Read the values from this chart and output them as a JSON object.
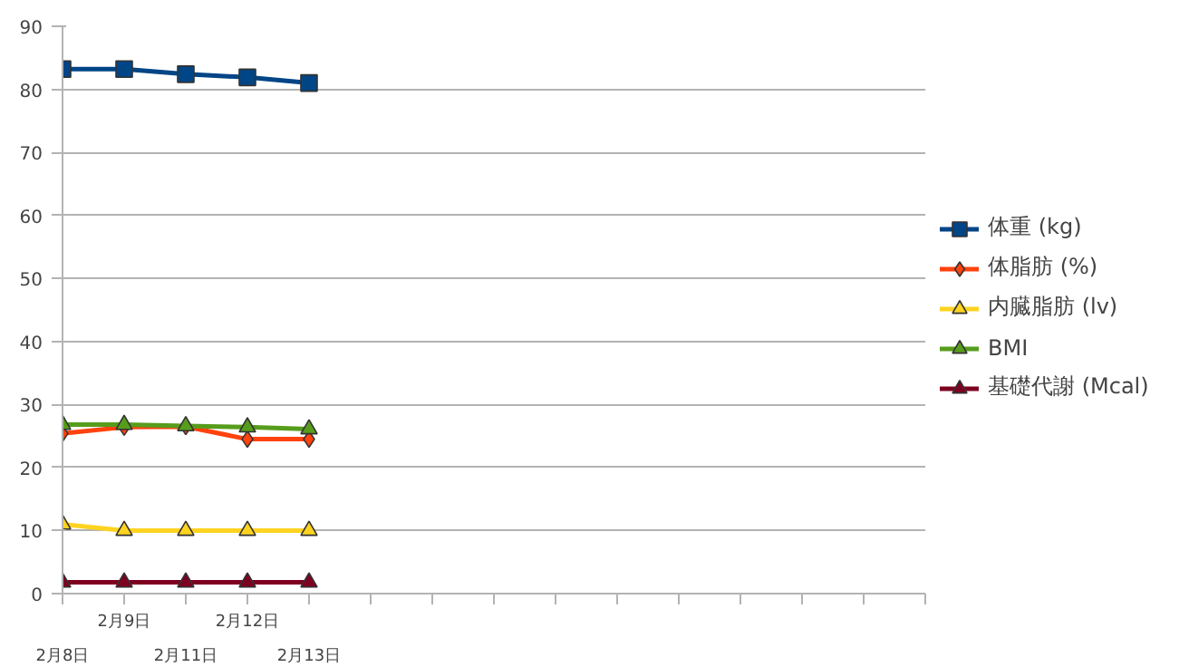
{
  "chart_data": {
    "type": "line",
    "categories": [
      "2月8日",
      "2月9日",
      "2月11日",
      "2月12日",
      "2月13日",
      null,
      null,
      null,
      null,
      null,
      null,
      null,
      null,
      null,
      null
    ],
    "series": [
      {
        "name": "体重 (kg)",
        "color": "#004586",
        "marker": "square",
        "values": [
          83.2,
          83.2,
          82.4,
          81.9,
          81.0,
          null,
          null,
          null,
          null,
          null,
          null,
          null,
          null,
          null,
          null
        ]
      },
      {
        "name": "体脂肪 (%)",
        "color": "#ff420e",
        "marker": "diamond",
        "values": [
          25.4,
          26.4,
          26.5,
          24.5,
          24.5,
          null,
          null,
          null,
          null,
          null,
          null,
          null,
          null,
          null,
          null
        ]
      },
      {
        "name": "内臓脂肪 (lv)",
        "color": "#ffd320",
        "marker": "triangle",
        "values": [
          11,
          10,
          10,
          10,
          10,
          null,
          null,
          null,
          null,
          null,
          null,
          null,
          null,
          null,
          null
        ]
      },
      {
        "name": "BMI",
        "color": "#579d1c",
        "marker": "triangle",
        "values": [
          26.8,
          26.8,
          26.6,
          26.4,
          26.1,
          null,
          null,
          null,
          null,
          null,
          null,
          null,
          null,
          null,
          null
        ]
      },
      {
        "name": "基礎代謝 (Mcal)",
        "color": "#7e0021",
        "marker": "triangle",
        "values": [
          1.8,
          1.8,
          1.8,
          1.8,
          1.8,
          null,
          null,
          null,
          null,
          null,
          null,
          null,
          null,
          null,
          null
        ]
      }
    ],
    "ylim": [
      0,
      90
    ],
    "yticks": [
      0,
      10,
      20,
      30,
      40,
      50,
      60,
      70,
      80,
      90
    ],
    "grid": "y",
    "legend": "right"
  }
}
